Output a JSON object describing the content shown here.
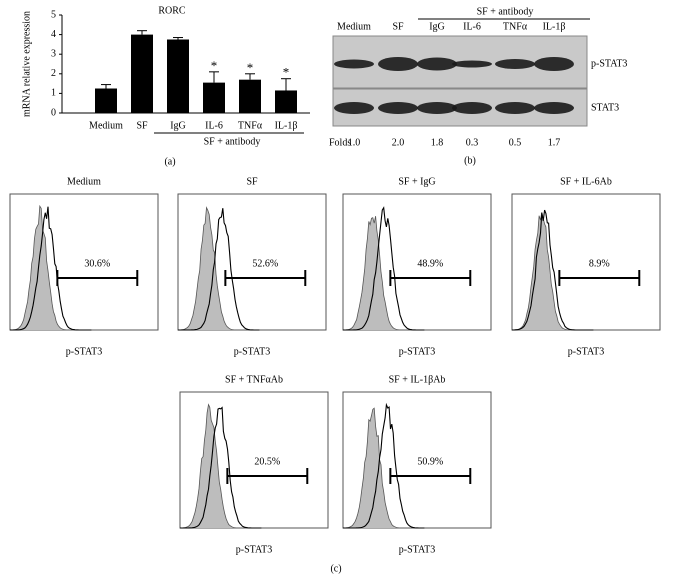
{
  "chart_data": {
    "type": "bar",
    "title": "RORC",
    "y_label": "mRNA relative expression",
    "categories": [
      "Medium",
      "SF",
      "IgG",
      "IL-6",
      "TNFα",
      "IL-1β"
    ],
    "values": [
      1.25,
      4.0,
      3.75,
      1.55,
      1.7,
      1.15
    ],
    "errors": [
      0.2,
      0.2,
      0.1,
      0.55,
      0.3,
      0.6
    ],
    "significance": [
      null,
      null,
      null,
      "*",
      "*",
      "*"
    ],
    "color": "#000000",
    "ylim": [
      0,
      5
    ],
    "yticks": [
      0,
      1,
      2,
      3,
      4,
      5
    ],
    "group_label": "SF + antibody",
    "panel_label": "(a)"
  },
  "blot": {
    "lanes": [
      "Medium",
      "SF",
      "IgG",
      "IL-6",
      "TNFα",
      "IL-1β"
    ],
    "group_label": "SF + antibody",
    "rows": [
      "p-STAT3",
      "STAT3"
    ],
    "folds_label": "Folds",
    "folds": [
      "1.0",
      "2.0",
      "1.8",
      "0.3",
      "0.5",
      "1.7"
    ],
    "panel_label": "(b)"
  },
  "flow": {
    "panels": [
      {
        "title": "Medium",
        "gate_label": "30.6%",
        "x_label": "p-STAT3"
      },
      {
        "title": "SF",
        "gate_label": "52.6%",
        "x_label": "p-STAT3"
      },
      {
        "title": "SF + IgG",
        "gate_label": "48.9%",
        "x_label": "p-STAT3"
      },
      {
        "title": "SF + IL-6Ab",
        "gate_label": "8.9%",
        "x_label": "p-STAT3"
      },
      {
        "title": "SF + TNFαAb",
        "gate_label": "20.5%",
        "x_label": "p-STAT3"
      },
      {
        "title": "SF + IL-1βAb",
        "gate_label": "50.9%",
        "x_label": "p-STAT3"
      }
    ],
    "panel_label": "(c)"
  }
}
